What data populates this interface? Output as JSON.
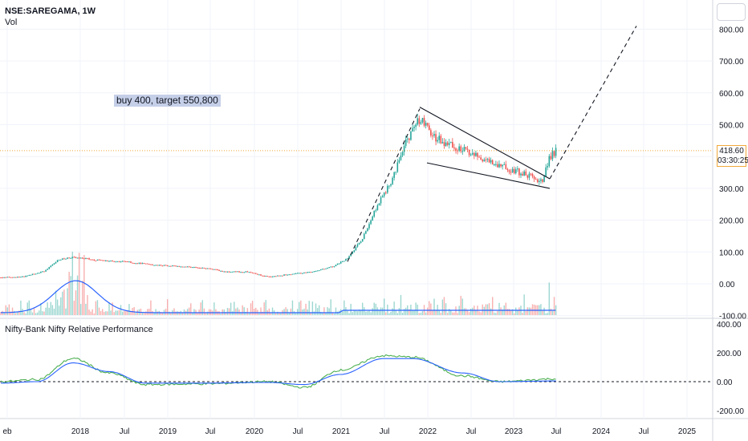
{
  "header": {
    "symbol": "NSE:SAREGAMA, 1W",
    "volume_label": "Vol"
  },
  "annotation": {
    "text": "buy 400, target 550,800"
  },
  "indicator": {
    "title": "Nifty-Bank Nifty Relative Performance"
  },
  "last_price": {
    "value": "418.60",
    "countdown": "03:30:25"
  },
  "colors": {
    "up": "#26a69a",
    "down": "#ef5350",
    "ma": "#2962ff",
    "rp": "#4caf50",
    "grid": "#f0f3fa"
  },
  "chart_data": [
    {
      "type": "candlestick",
      "price_axis": {
        "ticks": [
          800,
          700,
          600,
          500,
          400,
          300,
          200,
          100,
          0,
          -100
        ],
        "range": [
          -100,
          850
        ]
      },
      "time_axis": {
        "labels": [
          "eb",
          "2018",
          "Jul",
          "2019",
          "Jul",
          "2020",
          "Jul",
          "2021",
          "Jul",
          "2022",
          "Jul",
          "2023",
          "Jul",
          "2024",
          "Jul",
          "2025"
        ]
      },
      "price_path": [
        [
          "2017-02",
          20
        ],
        [
          "2017-05",
          22
        ],
        [
          "2017-08",
          40
        ],
        [
          "2017-10",
          75
        ],
        [
          "2017-12",
          85
        ],
        [
          "2018-03",
          75
        ],
        [
          "2018-07",
          70
        ],
        [
          "2018-11",
          60
        ],
        [
          "2019-03",
          55
        ],
        [
          "2019-07",
          48
        ],
        [
          "2019-09",
          38
        ],
        [
          "2019-12",
          38
        ],
        [
          "2020-03",
          22
        ],
        [
          "2020-06",
          30
        ],
        [
          "2020-09",
          38
        ],
        [
          "2020-12",
          55
        ],
        [
          "2021-02",
          80
        ],
        [
          "2021-04",
          140
        ],
        [
          "2021-06",
          240
        ],
        [
          "2021-08",
          320
        ],
        [
          "2021-10",
          440
        ],
        [
          "2021-12",
          520
        ],
        [
          "2022-02",
          460
        ],
        [
          "2022-06",
          420
        ],
        [
          "2022-10",
          380
        ],
        [
          "2023-02",
          350
        ],
        [
          "2023-05",
          320
        ],
        [
          "2023-06",
          400
        ],
        [
          "2023-07",
          418.6
        ]
      ],
      "trendlines": [
        {
          "style": "dashed",
          "from": [
            "2021-02",
            70
          ],
          "to": [
            "2021-12",
            550
          ]
        },
        {
          "style": "solid",
          "from": [
            "2021-12",
            555
          ],
          "to": [
            "2023-06",
            330
          ]
        },
        {
          "style": "solid",
          "from": [
            "2022-01",
            380
          ],
          "to": [
            "2023-06",
            300
          ]
        },
        {
          "style": "dashed",
          "from": [
            "2023-06",
            330
          ],
          "to": [
            "2024-06",
            810
          ]
        }
      ],
      "volume_ma": true
    },
    {
      "type": "line",
      "title": "Nifty-Bank Nifty Relative Performance",
      "y_axis": {
        "ticks": [
          400,
          200,
          0,
          -200
        ],
        "range": [
          -240,
          420
        ]
      },
      "series": [
        {
          "color": "green",
          "points": [
            [
              "2017-02",
              0
            ],
            [
              "2017-07",
              15
            ],
            [
              "2017-12",
              160
            ],
            [
              "2018-05",
              60
            ],
            [
              "2018-10",
              -20
            ],
            [
              "2019-06",
              -15
            ],
            [
              "2020-03",
              0
            ],
            [
              "2020-08",
              -40
            ],
            [
              "2021-01",
              80
            ],
            [
              "2021-07",
              180
            ],
            [
              "2021-11",
              170
            ],
            [
              "2022-06",
              40
            ],
            [
              "2022-11",
              0
            ],
            [
              "2023-07",
              20
            ]
          ]
        },
        {
          "color": "blue",
          "points": [
            [
              "2017-02",
              -10
            ],
            [
              "2017-07",
              0
            ],
            [
              "2017-12",
              130
            ],
            [
              "2018-05",
              70
            ],
            [
              "2018-10",
              -10
            ],
            [
              "2019-06",
              -10
            ],
            [
              "2020-03",
              -5
            ],
            [
              "2020-08",
              -20
            ],
            [
              "2021-01",
              50
            ],
            [
              "2021-07",
              160
            ],
            [
              "2021-11",
              160
            ],
            [
              "2022-06",
              60
            ],
            [
              "2022-11",
              0
            ],
            [
              "2023-07",
              5
            ]
          ]
        }
      ]
    }
  ]
}
